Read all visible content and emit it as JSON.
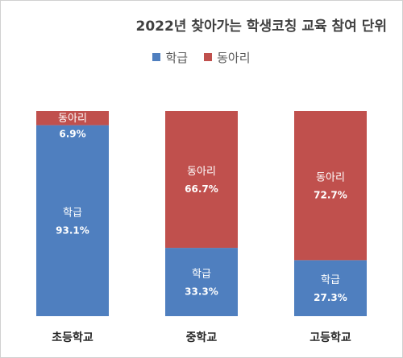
{
  "chart_data": {
    "type": "bar",
    "stacked": true,
    "percent": true,
    "title": "2022년 찾아가는 학생코칭 교육 참여 단위",
    "categories": [
      "초등학교",
      "중학교",
      "고등학교"
    ],
    "series": [
      {
        "name": "학급",
        "values": [
          93.1,
          33.3,
          27.3
        ],
        "labels": [
          "93.1%",
          "33.3%",
          "27.3%"
        ],
        "color": "#4f7fbf"
      },
      {
        "name": "동아리",
        "values": [
          6.9,
          66.7,
          72.7
        ],
        "labels": [
          "6.9%",
          "66.7%",
          "72.7%"
        ],
        "color": "#c0504d"
      }
    ],
    "ylim": [
      0,
      100
    ],
    "legend_position": "top",
    "grid": false
  }
}
